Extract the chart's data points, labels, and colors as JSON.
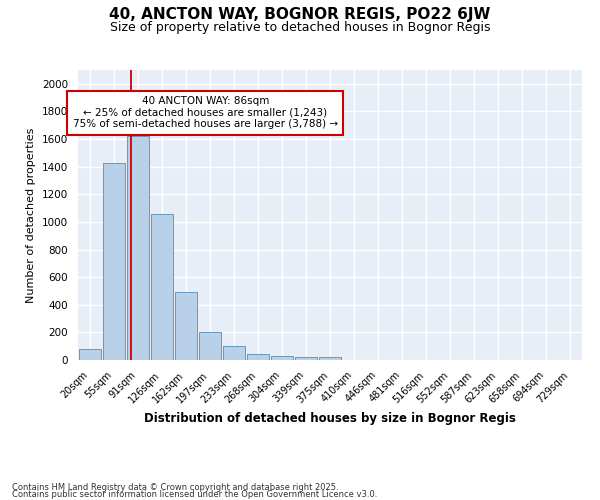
{
  "title": "40, ANCTON WAY, BOGNOR REGIS, PO22 6JW",
  "subtitle": "Size of property relative to detached houses in Bognor Regis",
  "xlabel": "Distribution of detached houses by size in Bognor Regis",
  "ylabel": "Number of detached properties",
  "categories": [
    "20sqm",
    "55sqm",
    "91sqm",
    "126sqm",
    "162sqm",
    "197sqm",
    "233sqm",
    "268sqm",
    "304sqm",
    "339sqm",
    "375sqm",
    "410sqm",
    "446sqm",
    "481sqm",
    "516sqm",
    "552sqm",
    "587sqm",
    "623sqm",
    "658sqm",
    "694sqm",
    "729sqm"
  ],
  "values": [
    80,
    1430,
    1620,
    1060,
    490,
    205,
    105,
    40,
    30,
    20,
    20,
    0,
    0,
    0,
    0,
    0,
    0,
    0,
    0,
    0,
    0
  ],
  "bar_color": "#b8d0e8",
  "bar_edge_color": "#6699bb",
  "red_line_color": "#cc0000",
  "annotation_text": "40 ANCTON WAY: 86sqm\n← 25% of detached houses are smaller (1,243)\n75% of semi-detached houses are larger (3,788) →",
  "annotation_box_color": "#ffffff",
  "annotation_box_edge_color": "#cc0000",
  "ylim": [
    0,
    2100
  ],
  "yticks": [
    0,
    200,
    400,
    600,
    800,
    1000,
    1200,
    1400,
    1600,
    1800,
    2000
  ],
  "background_color": "#e8eef8",
  "grid_color": "#ffffff",
  "fig_background": "#ffffff",
  "footer_line1": "Contains HM Land Registry data © Crown copyright and database right 2025.",
  "footer_line2": "Contains public sector information licensed under the Open Government Licence v3.0."
}
